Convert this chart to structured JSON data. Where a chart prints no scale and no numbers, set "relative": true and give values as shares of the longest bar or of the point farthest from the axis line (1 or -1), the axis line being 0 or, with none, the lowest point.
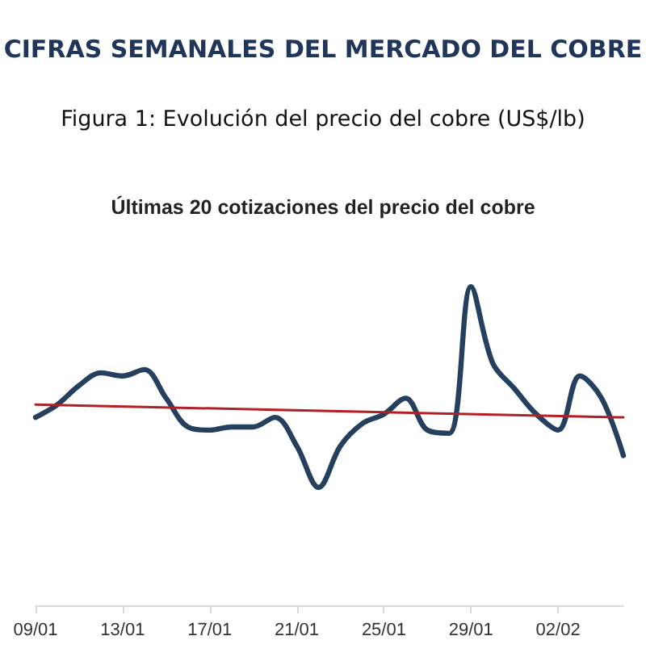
{
  "chart_data": {
    "type": "line",
    "title": "CIFRAS SEMANALES DEL MERCADO DEL COBRE",
    "subtitle": "Figura 1: Evolución del precio del cobre (US$/lb)",
    "annotations": [
      "Últimas 20 cotizaciones del precio del cobre"
    ],
    "relative": true,
    "grid": false,
    "marker": "none",
    "categories": [
      "09/01",
      null,
      null,
      null,
      "13/01",
      null,
      null,
      null,
      "17/01",
      null,
      null,
      null,
      "21/01",
      null,
      null,
      null,
      "25/01",
      null,
      null,
      null,
      "29/01",
      null,
      null,
      null,
      "02/02",
      null,
      null,
      null
    ],
    "series": [
      {
        "color": "#253f5e",
        "values": [
          0.59,
          0.63,
          0.69,
          0.73,
          0.72,
          0.74,
          0.65,
          0.56,
          0.55,
          0.56,
          0.56,
          0.59,
          0.5,
          0.37,
          0.5,
          0.57,
          0.6,
          0.65,
          0.55,
          0.54,
          1,
          0.76,
          0.68,
          0.6,
          0.55,
          0.72,
          0.65,
          0.47
        ]
      },
      {
        "color": "#b22026",
        "values": [
          0.63,
          null,
          null,
          null,
          null,
          null,
          null,
          null,
          null,
          null,
          null,
          null,
          null,
          null,
          null,
          null,
          null,
          null,
          null,
          null,
          null,
          null,
          null,
          null,
          null,
          null,
          null,
          0.59
        ]
      }
    ]
  }
}
